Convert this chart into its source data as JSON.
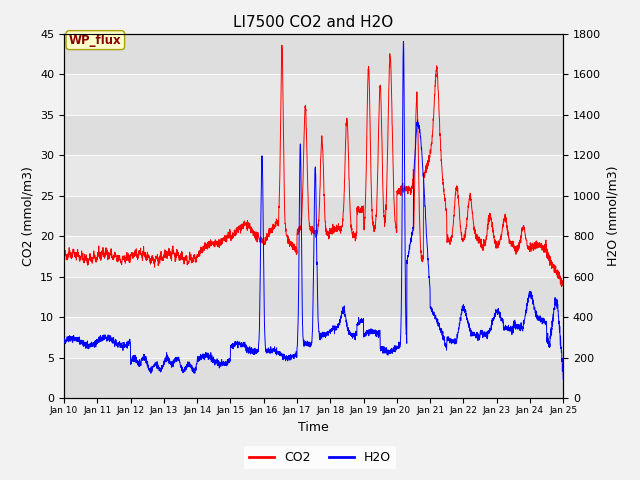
{
  "title": "LI7500 CO2 and H2O",
  "xlabel": "Time",
  "ylabel_left": "CO2 (mmol/m3)",
  "ylabel_right": "H2O (mmol/m3)",
  "xlim": [
    0,
    15
  ],
  "ylim_left": [
    0,
    45
  ],
  "ylim_right": [
    0,
    1800
  ],
  "x_tick_labels": [
    "Jan 10",
    "Jan 11",
    "Jan 12",
    "Jan 13",
    "Jan 14",
    "Jan 15",
    "Jan 16",
    "Jan 17",
    "Jan 18",
    "Jan 19",
    "Jan 20",
    "Jan 21",
    "Jan 22",
    "Jan 23",
    "Jan 24",
    "Jan 25"
  ],
  "annotation_text": "WP_flux",
  "annotation_color": "#8B0000",
  "annotation_bg": "#ffffcc",
  "co2_color": "#FF0000",
  "h2o_color": "#0000FF",
  "legend_co2": "CO2",
  "legend_h2o": "H2O",
  "fig_bg": "#f2f2f2",
  "plot_bg": "#e8e8e8",
  "grid_color": "#ffffff",
  "title_fontsize": 11,
  "tick_fontsize": 8,
  "label_fontsize": 9
}
